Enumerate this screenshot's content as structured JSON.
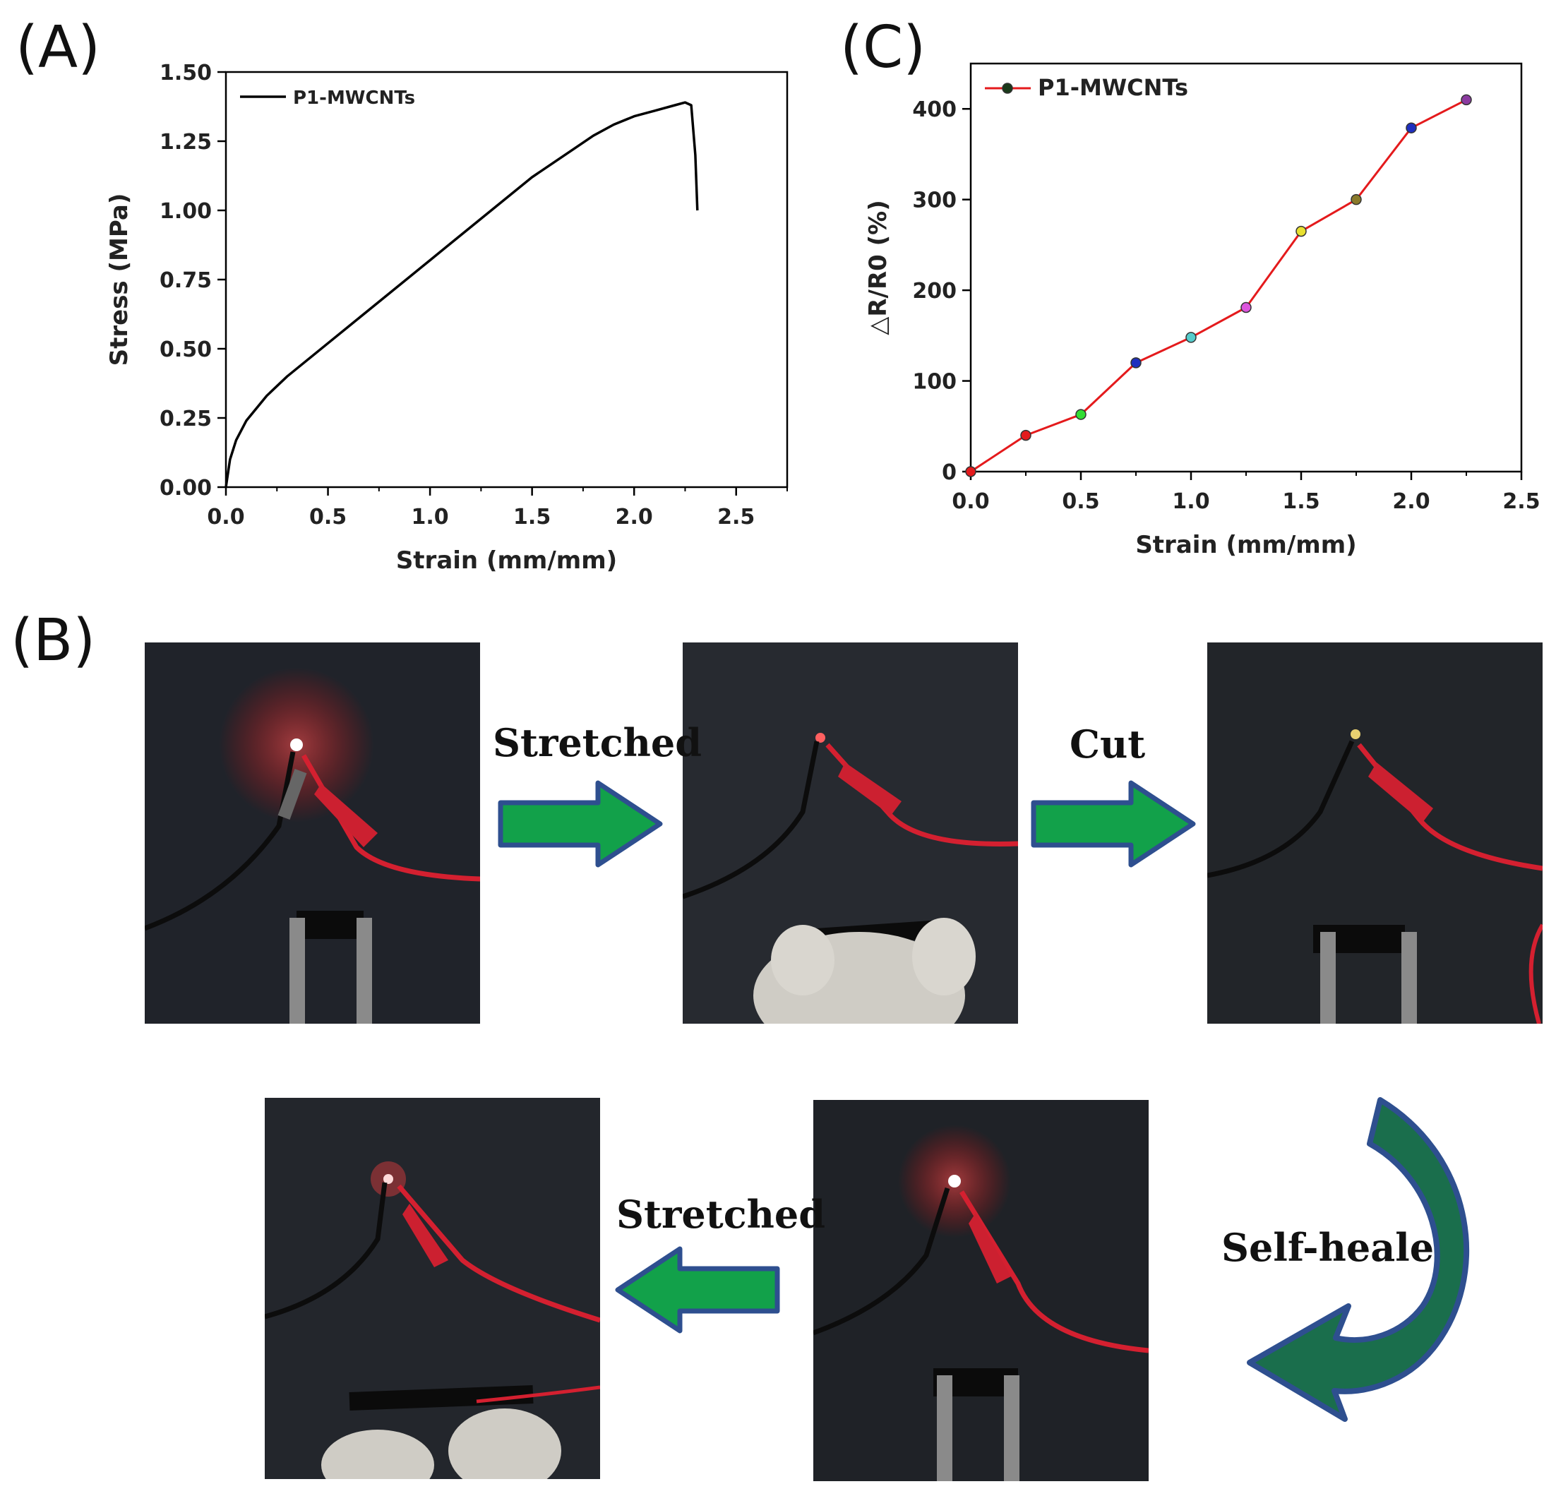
{
  "panels": {
    "a_label": "(A)",
    "b_label": "(B)",
    "c_label": "(C)"
  },
  "colors": {
    "arrow_fill": "#12a14a",
    "arrow_stroke": "#2e4f8f",
    "curve_arrow_fill": "#1a6e4c",
    "chart_a_line": "#000000",
    "chart_c_line": "#e41a1c"
  },
  "chart_data": [
    {
      "id": "A",
      "type": "line",
      "xlabel": "Strain (mm/mm)",
      "ylabel": "Stress (MPa)",
      "xlim": [
        0,
        2.75
      ],
      "ylim": [
        0,
        1.5
      ],
      "xticks": [
        "0.0",
        "0.5",
        "1.0",
        "1.5",
        "2.0",
        "2.5"
      ],
      "yticks": [
        "0.00",
        "0.25",
        "0.50",
        "0.75",
        "1.00",
        "1.25",
        "1.50"
      ],
      "legend_position": "top-left",
      "grid": false,
      "series": [
        {
          "name": "P1-MWCNTs",
          "x": [
            0,
            0.02,
            0.05,
            0.1,
            0.2,
            0.3,
            0.4,
            0.5,
            0.6,
            0.7,
            0.8,
            0.9,
            1.0,
            1.1,
            1.2,
            1.3,
            1.4,
            1.5,
            1.6,
            1.7,
            1.8,
            1.9,
            2.0,
            2.1,
            2.2,
            2.25,
            2.28,
            2.3,
            2.31
          ],
          "y": [
            0,
            0.1,
            0.17,
            0.24,
            0.33,
            0.4,
            0.46,
            0.52,
            0.58,
            0.64,
            0.7,
            0.76,
            0.82,
            0.88,
            0.94,
            1.0,
            1.06,
            1.12,
            1.17,
            1.22,
            1.27,
            1.31,
            1.34,
            1.36,
            1.38,
            1.39,
            1.38,
            1.2,
            1.0
          ]
        }
      ]
    },
    {
      "id": "C",
      "type": "line",
      "xlabel": "Strain (mm/mm)",
      "ylabel": "△R/R0 (%)",
      "xlim": [
        0,
        2.5
      ],
      "ylim": [
        0,
        450
      ],
      "xticks": [
        "0.0",
        "0.5",
        "1.0",
        "1.5",
        "2.0",
        "2.5"
      ],
      "yticks": [
        "0",
        "100",
        "200",
        "300",
        "400"
      ],
      "legend_position": "top-left",
      "grid": false,
      "series": [
        {
          "name": "P1-MWCNTs",
          "x": [
            0,
            0.25,
            0.5,
            0.75,
            1.0,
            1.25,
            1.5,
            1.75,
            2.0,
            2.25
          ],
          "y": [
            0,
            40,
            63,
            120,
            148,
            181,
            265,
            300,
            379,
            410
          ],
          "marker_colors": [
            "#e41a1c",
            "#e41a1c",
            "#33dd33",
            "#1f2fbf",
            "#55cccc",
            "#dd55dd",
            "#e8e030",
            "#8a7a2a",
            "#1f2fbf",
            "#8b3aa0"
          ]
        }
      ]
    }
  ],
  "steps": {
    "stretched_1": "Stretched",
    "cut": "Cut",
    "self_healed": "Self-healed",
    "stretched_2": "Stretched"
  }
}
